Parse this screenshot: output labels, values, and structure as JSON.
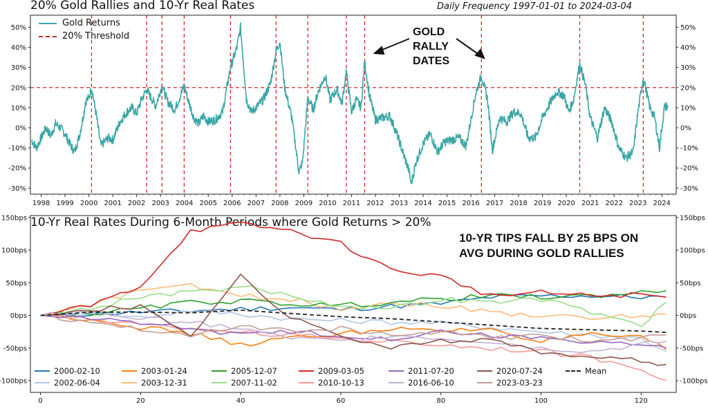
{
  "top": {
    "title": "20% Gold Rallies and 10-Yr Real Rates",
    "subtitle": "Daily Frequency 1997-01-01 to 2024-03-04",
    "legend": [
      {
        "label": "Gold Returns",
        "color": "#3aa6a6",
        "style": "solid"
      },
      {
        "label": "20% Threshold",
        "color": "#d62728",
        "style": "dashed"
      }
    ],
    "annotation": [
      "GOLD",
      "RALLY",
      "DATES"
    ]
  },
  "bottom": {
    "title": "10-Yr Real Rates During 6-Month Periods where Gold Returns > 20%",
    "annotation": [
      "10-YR TIPS FALL BY 25 BPS ON",
      "AVG DURING GOLD RALLIES"
    ]
  },
  "chart_data": [
    {
      "type": "line",
      "title": "20% Gold Rallies and 10-Yr Real Rates",
      "subtitle": "Daily Frequency 1997-01-01 to 2024-03-04",
      "x_range": [
        1997.55,
        2024.6
      ],
      "ylim": [
        -33,
        56
      ],
      "y_ticks": [
        -30,
        -20,
        -10,
        0,
        10,
        20,
        30,
        40,
        50
      ],
      "y_tick_labels": [
        "-30%",
        "-20%",
        "-10%",
        "0%",
        "10%",
        "20%",
        "30%",
        "40%",
        "50%"
      ],
      "x_ticks": [
        1998,
        1999,
        2000,
        2001,
        2002,
        2003,
        2004,
        2005,
        2006,
        2007,
        2008,
        2009,
        2010,
        2011,
        2012,
        2013,
        2014,
        2015,
        2016,
        2017,
        2018,
        2019,
        2020,
        2021,
        2022,
        2023,
        2024
      ],
      "threshold": 20,
      "rally_dates": [
        2000.11,
        2002.42,
        2003.06,
        2003.99,
        2005.93,
        2007.84,
        2009.17,
        2010.78,
        2011.55,
        2016.44,
        2020.56,
        2023.22
      ],
      "series": [
        {
          "name": "Gold Returns",
          "x": [
            1997.6,
            1997.8,
            1998.0,
            1998.2,
            1998.4,
            1998.6,
            1998.8,
            1999.0,
            1999.2,
            1999.4,
            1999.6,
            1999.8,
            1999.85,
            2000.0,
            2000.11,
            2000.3,
            2000.5,
            2000.8,
            2001.0,
            2001.3,
            2001.6,
            2001.8,
            2002.0,
            2002.2,
            2002.42,
            2002.6,
            2002.8,
            2003.06,
            2003.3,
            2003.6,
            2003.8,
            2003.99,
            2004.2,
            2004.4,
            2004.6,
            2004.8,
            2005.0,
            2005.3,
            2005.6,
            2005.93,
            2006.2,
            2006.35,
            2006.6,
            2006.8,
            2007.0,
            2007.3,
            2007.6,
            2007.84,
            2008.0,
            2008.2,
            2008.5,
            2008.8,
            2008.95,
            2009.17,
            2009.4,
            2009.6,
            2009.9,
            2010.1,
            2010.4,
            2010.6,
            2010.78,
            2011.0,
            2011.2,
            2011.4,
            2011.55,
            2011.75,
            2012.0,
            2012.3,
            2012.6,
            2012.9,
            2013.2,
            2013.4,
            2013.5,
            2013.7,
            2014.0,
            2014.3,
            2014.6,
            2014.9,
            2015.2,
            2015.5,
            2015.8,
            2016.0,
            2016.2,
            2016.44,
            2016.7,
            2016.9,
            2017.2,
            2017.5,
            2017.8,
            2018.1,
            2018.4,
            2018.7,
            2019.0,
            2019.3,
            2019.6,
            2019.9,
            2020.1,
            2020.3,
            2020.56,
            2020.8,
            2021.0,
            2021.3,
            2021.6,
            2021.9,
            2022.2,
            2022.5,
            2022.8,
            2023.0,
            2023.22,
            2023.5,
            2023.7,
            2023.9,
            2024.1,
            2024.25
          ],
          "y": [
            -6,
            -10,
            -5,
            0,
            -4,
            2,
            0,
            -3,
            -8,
            -12,
            -4,
            8,
            13,
            15,
            20,
            7,
            -9,
            -5,
            -6,
            3,
            8,
            10,
            7,
            14,
            19,
            15,
            11,
            21,
            13,
            9,
            15,
            21,
            12,
            5,
            2,
            6,
            3,
            4,
            8,
            30,
            40,
            50,
            14,
            8,
            10,
            14,
            22,
            38,
            43,
            20,
            5,
            -22,
            -17,
            15,
            9,
            18,
            26,
            14,
            19,
            12,
            28,
            8,
            14,
            10,
            33,
            16,
            4,
            5,
            6,
            -3,
            -14,
            -21,
            -28,
            -17,
            -8,
            -3,
            -12,
            -7,
            -6,
            -5,
            -9,
            4,
            17,
            26,
            14,
            -11,
            5,
            3,
            8,
            7,
            -5,
            -5,
            5,
            12,
            18,
            16,
            8,
            14,
            32,
            21,
            5,
            -5,
            10,
            3,
            -10,
            -15,
            -12,
            8,
            25,
            10,
            5,
            -10,
            10,
            11
          ]
        }
      ]
    },
    {
      "type": "line",
      "title": "10-Yr Real Rates During 6-Month Periods where Gold Returns > 20%",
      "x_range": [
        -2,
        127
      ],
      "ylim": [
        -118,
        153
      ],
      "x_ticks": [
        0,
        20,
        40,
        60,
        80,
        100,
        120
      ],
      "y_ticks": [
        -100,
        -50,
        0,
        50,
        100,
        150
      ],
      "y_tick_labels": [
        "-100bps",
        "-50bps",
        "0bps",
        "50bps",
        "100bps",
        "150bps"
      ],
      "legend_placement": "bottom",
      "x": [
        0,
        10,
        20,
        30,
        40,
        50,
        60,
        70,
        80,
        90,
        100,
        110,
        120,
        125
      ],
      "series": [
        {
          "name": "2000-02-10",
          "color": "#1f77b4",
          "style": "solid",
          "values": [
            0,
            2,
            5,
            7,
            10,
            12,
            9,
            14,
            18,
            28,
            30,
            30,
            28,
            28
          ]
        },
        {
          "name": "2002-06-04",
          "color": "#aec7e8",
          "style": "solid",
          "values": [
            0,
            5,
            -3,
            8,
            2,
            -5,
            -8,
            -10,
            -12,
            -18,
            -25,
            -30,
            -35,
            -55
          ]
        },
        {
          "name": "2003-01-24",
          "color": "#ff7f0e",
          "style": "solid",
          "values": [
            0,
            -5,
            -18,
            -28,
            -45,
            -35,
            -28,
            -20,
            -25,
            -20,
            -40,
            -30,
            -35,
            -52
          ]
        },
        {
          "name": "2003-12-31",
          "color": "#ffbb78",
          "style": "solid",
          "values": [
            0,
            15,
            40,
            45,
            30,
            25,
            10,
            20,
            15,
            5,
            0,
            -5,
            0,
            2
          ]
        },
        {
          "name": "2005-12-07",
          "color": "#2ca02c",
          "style": "solid",
          "values": [
            0,
            3,
            10,
            20,
            22,
            18,
            15,
            20,
            25,
            30,
            28,
            30,
            35,
            38
          ]
        },
        {
          "name": "2007-11-02",
          "color": "#98df8a",
          "style": "solid",
          "values": [
            0,
            10,
            30,
            35,
            45,
            30,
            15,
            10,
            25,
            20,
            25,
            5,
            -15,
            20
          ]
        },
        {
          "name": "2009-03-05",
          "color": "#d62728",
          "style": "solid",
          "values": [
            0,
            15,
            45,
            130,
            140,
            130,
            110,
            70,
            60,
            30,
            35,
            30,
            32,
            28
          ]
        },
        {
          "name": "2010-10-13",
          "color": "#ff9896",
          "style": "solid",
          "values": [
            0,
            -5,
            -15,
            -20,
            -25,
            -30,
            -35,
            -40,
            -45,
            -50,
            -55,
            -65,
            -80,
            -100
          ]
        },
        {
          "name": "2011-07-20",
          "color": "#9467bd",
          "style": "solid",
          "values": [
            0,
            -5,
            -10,
            -20,
            -30,
            -25,
            -30,
            -35,
            -25,
            -30,
            -35,
            -40,
            -45,
            -50
          ]
        },
        {
          "name": "2016-06-10",
          "color": "#c5b0d5",
          "style": "solid",
          "values": [
            0,
            5,
            -5,
            -10,
            -20,
            -35,
            -40,
            -30,
            -35,
            -40,
            -50,
            -55,
            -45,
            -40
          ]
        },
        {
          "name": "2020-07-24",
          "color": "#8c564b",
          "style": "solid",
          "values": [
            0,
            8,
            15,
            -30,
            60,
            -5,
            -30,
            -50,
            -40,
            -35,
            -60,
            -60,
            -70,
            -75
          ]
        },
        {
          "name": "2023-03-23",
          "color": "#c49c94",
          "style": "solid",
          "values": [
            0,
            -10,
            -20,
            -30,
            -15,
            -25,
            -20,
            -30,
            -25,
            -35,
            -30,
            -40,
            -35,
            -30
          ]
        },
        {
          "name": "Mean",
          "color": "#222222",
          "style": "dashed",
          "values": [
            0,
            5,
            5,
            4,
            8,
            3,
            -2,
            -5,
            -10,
            -15,
            -20,
            -22,
            -24,
            -26
          ]
        }
      ]
    }
  ]
}
